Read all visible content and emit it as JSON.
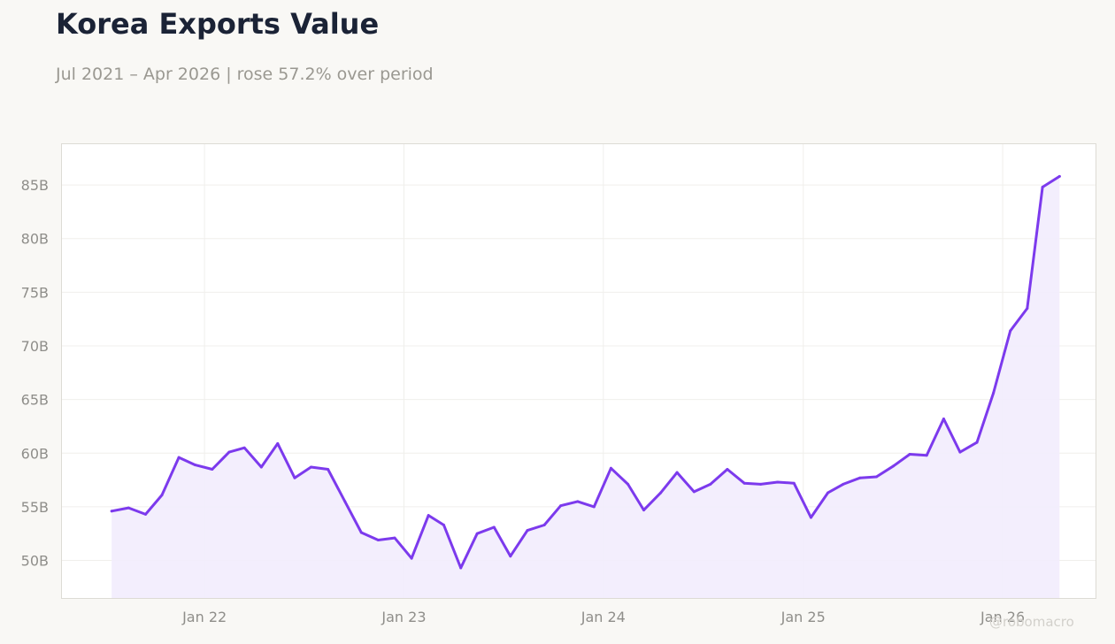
{
  "header": {
    "title": "Korea Exports Value",
    "subtitle": "Jul 2021 – Apr 2026 | rose 57.2% over period"
  },
  "watermark": "@robomacro",
  "colors": {
    "line": "#7c3aed",
    "fill": "#f2ecfd",
    "background": "#f9f8f5"
  },
  "chart_data": {
    "type": "area",
    "title": "Korea Exports Value",
    "subtitle": "Jul 2021 – Apr 2026 | rose 57.2% over period",
    "xlabel": "",
    "ylabel": "",
    "y_unit": "B",
    "ylim": [
      46.5,
      88.8
    ],
    "xlim": [
      "2021-04-15",
      "2026-06-20"
    ],
    "grid": true,
    "legend": "none",
    "x_ticks": [
      {
        "date": "2022-01-01",
        "label": "Jan 22"
      },
      {
        "date": "2023-01-01",
        "label": "Jan 23"
      },
      {
        "date": "2024-01-01",
        "label": "Jan 24"
      },
      {
        "date": "2025-01-01",
        "label": "Jan 25"
      },
      {
        "date": "2026-01-01",
        "label": "Jan 26"
      }
    ],
    "y_ticks": [
      {
        "value": 50,
        "label": "50B"
      },
      {
        "value": 55,
        "label": "55B"
      },
      {
        "value": 60,
        "label": "60B"
      },
      {
        "value": 65,
        "label": "65B"
      },
      {
        "value": 70,
        "label": "70B"
      },
      {
        "value": 75,
        "label": "75B"
      },
      {
        "value": 80,
        "label": "80B"
      },
      {
        "value": 85,
        "label": "85B"
      }
    ],
    "series": [
      {
        "x": [
          "2021-07",
          "2021-08",
          "2021-09",
          "2021-10",
          "2021-11",
          "2021-12",
          "2022-01",
          "2022-02",
          "2022-03",
          "2022-04",
          "2022-05",
          "2022-06",
          "2022-07",
          "2022-08",
          "2022-09",
          "2022-10",
          "2022-11",
          "2022-12",
          "2023-01",
          "2023-02",
          "2023-03",
          "2023-04",
          "2023-05",
          "2023-06",
          "2023-07",
          "2023-08",
          "2023-09",
          "2023-10",
          "2023-11",
          "2023-12",
          "2024-01",
          "2024-02",
          "2024-03",
          "2024-04",
          "2024-05",
          "2024-06",
          "2024-07",
          "2024-08",
          "2024-09",
          "2024-10",
          "2024-11",
          "2024-12",
          "2025-01",
          "2025-02",
          "2025-03",
          "2025-04",
          "2025-05",
          "2025-06",
          "2025-07",
          "2025-08",
          "2025-09",
          "2025-10",
          "2025-11",
          "2025-12",
          "2026-01",
          "2026-02",
          "2026-03",
          "2026-04"
        ],
        "values": [
          54.6,
          54.9,
          54.3,
          56.1,
          59.6,
          58.9,
          58.5,
          60.1,
          60.5,
          58.7,
          60.9,
          57.7,
          58.7,
          58.5,
          55.5,
          52.6,
          51.9,
          52.1,
          50.2,
          54.2,
          53.3,
          49.3,
          52.5,
          53.1,
          50.4,
          52.8,
          53.3,
          55.1,
          55.5,
          55.0,
          58.6,
          57.1,
          54.7,
          56.3,
          58.2,
          56.4,
          57.1,
          58.5,
          57.2,
          57.1,
          57.3,
          57.2,
          54.0,
          56.3,
          57.1,
          57.7,
          57.8,
          58.8,
          59.9,
          59.8,
          63.2,
          60.1,
          61.0,
          65.6,
          71.4,
          73.5,
          84.8,
          85.8
        ]
      }
    ]
  }
}
